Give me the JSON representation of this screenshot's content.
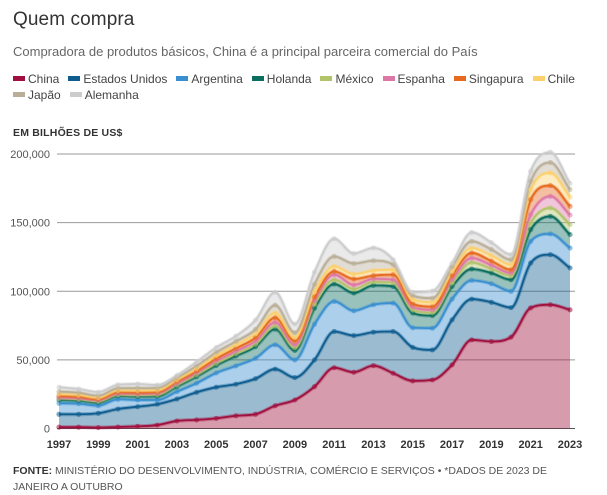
{
  "header": {
    "title": "Quem compra",
    "subtitle": "Compradora de produtos básicos, China é a principal parceira comercial do País"
  },
  "unit_label": "EM BILHÕES DE US$",
  "footer": {
    "source_label": "FONTE:",
    "source_text": " MINISTÉRIO DO DESENVOLVIMENTO, INDÚSTRIA, COMÉRCIO E SERVIÇOS • *DADOS DE 2023 DE JANEIRO A OUTUBRO"
  },
  "chart_data": {
    "type": "area",
    "stacked": true,
    "title": "Quem compra",
    "subtitle": "Compradora de produtos básicos, China é a principal parceira comercial do País",
    "xlabel": "",
    "ylabel": "EM BILHÕES DE US$",
    "ylim": [
      0,
      200000
    ],
    "yticks": [
      0,
      50000,
      100000,
      150000,
      200000
    ],
    "ytick_labels": [
      "0",
      "50,000",
      "100,000",
      "150,000",
      "200,000"
    ],
    "xtick_labels": [
      "1997",
      "1999",
      "2001",
      "2003",
      "2005",
      "2007",
      "2009",
      "2011",
      "2013",
      "2015",
      "2017",
      "2019",
      "2021",
      "2023"
    ],
    "grid": true,
    "legend": "top",
    "x": [
      1997,
      1998,
      1999,
      2000,
      2001,
      2002,
      2003,
      2004,
      2005,
      2006,
      2007,
      2008,
      2009,
      2010,
      2011,
      2012,
      2013,
      2014,
      2015,
      2016,
      2017,
      2018,
      2019,
      2020,
      2021,
      2022,
      2023
    ],
    "series": [
      {
        "name": "China",
        "color": "#a0103e",
        "values": [
          1000,
          1000,
          700,
          1100,
          1600,
          2500,
          5500,
          6300,
          7400,
          9300,
          10400,
          16600,
          20800,
          30500,
          44300,
          41000,
          45800,
          40300,
          34700,
          35400,
          46400,
          64600,
          63400,
          66600,
          87900,
          90200,
          86500
        ]
      },
      {
        "name": "Estados Unidos",
        "color": "#0f5d8f",
        "values": [
          9400,
          9400,
          10400,
          13100,
          14300,
          15200,
          16000,
          20100,
          22700,
          23000,
          25900,
          26700,
          16300,
          19500,
          26400,
          26700,
          24400,
          30400,
          24400,
          21900,
          32800,
          29700,
          28600,
          21500,
          32700,
          36500,
          30500
        ]
      },
      {
        "name": "Argentina",
        "color": "#3a8fd0",
        "values": [
          8000,
          7700,
          5500,
          7100,
          4900,
          3100,
          5400,
          6600,
          10400,
          13300,
          14900,
          17700,
          12900,
          26000,
          21900,
          18100,
          20000,
          20700,
          14300,
          15800,
          15100,
          13600,
          13500,
          11900,
          15800,
          15100,
          14500
        ]
      },
      {
        "name": "Holanda",
        "color": "#0b6e5f",
        "values": [
          2400,
          2200,
          2200,
          2400,
          2500,
          2700,
          3600,
          4800,
          5500,
          7300,
          8500,
          11400,
          6900,
          11700,
          12700,
          12900,
          14100,
          12100,
          10700,
          9200,
          9200,
          8300,
          7800,
          8400,
          8500,
          12800,
          9800
        ]
      },
      {
        "name": "México",
        "color": "#b2c46a",
        "values": [
          1100,
          1000,
          1000,
          900,
          1000,
          1100,
          1200,
          1300,
          1500,
          1600,
          1800,
          2300,
          2000,
          2800,
          3100,
          2900,
          2500,
          2700,
          2200,
          2200,
          2500,
          4800,
          3000,
          2900,
          4900,
          6100,
          7300
        ]
      },
      {
        "name": "Espanha",
        "color": "#dd78a6",
        "values": [
          700,
          700,
          800,
          800,
          900,
          1000,
          1100,
          1400,
          1700,
          1800,
          2100,
          2600,
          2000,
          2600,
          3700,
          3000,
          2200,
          2200,
          2200,
          2000,
          2500,
          3200,
          2700,
          2000,
          6100,
          8500,
          6900
        ]
      },
      {
        "name": "Singapura",
        "color": "#e66a1f",
        "values": [
          1100,
          1100,
          700,
          1000,
          1000,
          900,
          1400,
          1400,
          1800,
          2100,
          2600,
          3500,
          2900,
          2700,
          2400,
          4300,
          2400,
          3700,
          2300,
          2300,
          3000,
          3700,
          3000,
          2400,
          10900,
          7800,
          6400
        ]
      },
      {
        "name": "Chile",
        "color": "#fbd06d",
        "values": [
          1500,
          1400,
          1300,
          1400,
          1600,
          1500,
          1400,
          1800,
          2200,
          2500,
          2800,
          3400,
          2600,
          3800,
          3600,
          3600,
          3700,
          3600,
          3200,
          3200,
          3000,
          3600,
          4000,
          3700,
          7300,
          9300,
          6700
        ]
      },
      {
        "name": "Japão",
        "color": "#b9ae98",
        "values": [
          1700,
          1600,
          1300,
          1500,
          1600,
          1600,
          1500,
          1900,
          2300,
          2600,
          3200,
          5700,
          3400,
          5500,
          7300,
          7700,
          7200,
          3700,
          2800,
          3000,
          3300,
          4900,
          4500,
          3600,
          6100,
          7500,
          5500
        ]
      },
      {
        "name": "Alemanha",
        "color": "#cccccc",
        "values": [
          3200,
          2700,
          2600,
          2600,
          3000,
          2100,
          1600,
          2900,
          3500,
          3800,
          6800,
          9400,
          6300,
          8900,
          12900,
          7300,
          9300,
          3600,
          2500,
          5200,
          2600,
          6500,
          5000,
          3700,
          7300,
          7500,
          4500
        ]
      }
    ]
  }
}
